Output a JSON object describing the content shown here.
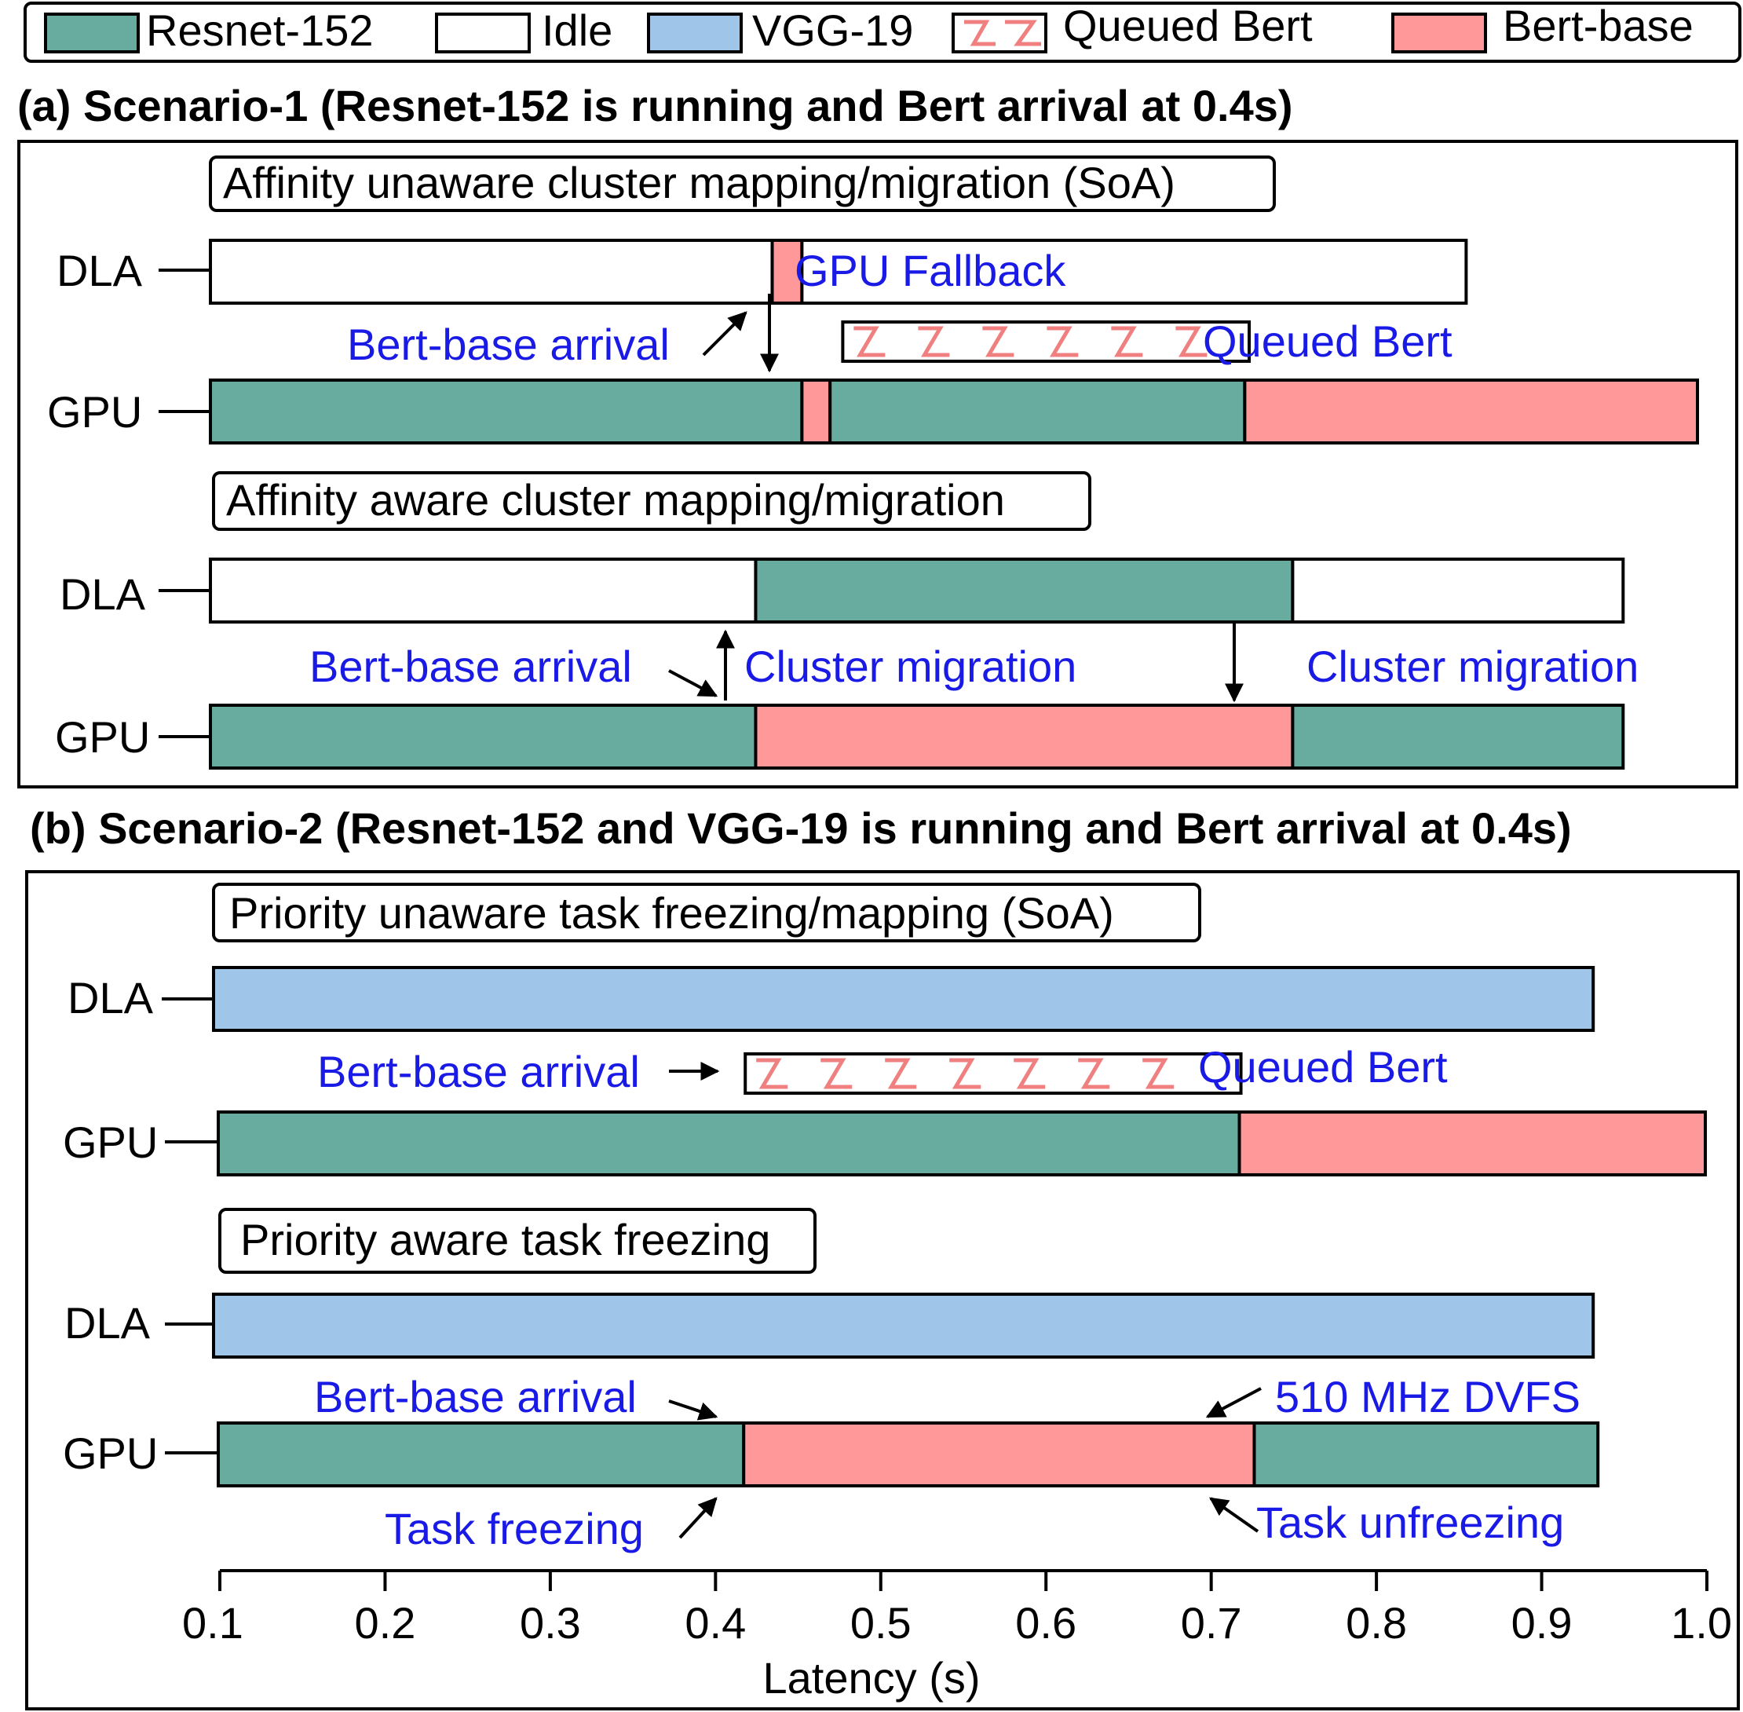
{
  "colors": {
    "resnet": "#68ab9f",
    "idle": "#ffffff",
    "vgg": "#9fc5e8",
    "queued_stroke": "#f08080",
    "bert": "#ff9999",
    "annotation": "#1a1ae6"
  },
  "legend": {
    "resnet": "Resnet-152",
    "idle": "Idle",
    "vgg": "VGG-19",
    "queued": "Queued Bert",
    "bert": "Bert-base"
  },
  "scenario_a": {
    "title": "(a) Scenario-1 (Resnet-152 is running and Bert arrival at 0.4s)",
    "panel1_title": "Affinity unaware cluster mapping/migration (SoA)",
    "panel2_title": "Affinity aware cluster mapping/migration",
    "dla_label": "DLA",
    "gpu_label": "GPU",
    "gpu_fallback": "GPU Fallback",
    "bert_arrival": "Bert-base arrival",
    "queued_bert": "Queued Bert",
    "cluster_migration_1": "Cluster migration",
    "cluster_migration_2": "Cluster migration"
  },
  "scenario_b": {
    "title": "(b) Scenario-2 (Resnet-152 and VGG-19 is running and Bert arrival at 0.4s)",
    "panel1_title": "Priority unaware task freezing/mapping (SoA)",
    "panel2_title": "Priority aware task freezing",
    "dla_label": "DLA",
    "gpu_label": "GPU",
    "bert_arrival_1": "Bert-base arrival",
    "queued_bert": "Queued Bert",
    "bert_arrival_2": "Bert-base arrival",
    "dvfs": "510  MHz DVFS",
    "task_freezing": "Task freezing",
    "task_unfreezing": "Task unfreezing"
  },
  "chart_data": {
    "type": "timeline",
    "xlabel": "Latency (s)",
    "xlim": [
      0.1,
      1.0
    ],
    "xticks": [
      "0.1",
      "0.2",
      "0.3",
      "0.4",
      "0.5",
      "0.6",
      "0.7",
      "0.8",
      "0.9",
      "1.0"
    ],
    "rows": [
      {
        "id": "a1-dla",
        "segments": [
          {
            "task": "idle",
            "start": 0.1,
            "end": 0.44
          },
          {
            "task": "bert",
            "start": 0.44,
            "end": 0.458
          },
          {
            "task": "idle",
            "start": 0.458,
            "end": 0.86
          }
        ]
      },
      {
        "id": "a1-queued",
        "segments": [
          {
            "task": "queued",
            "start": 0.477,
            "end": 0.723
          }
        ]
      },
      {
        "id": "a1-gpu",
        "segments": [
          {
            "task": "resnet",
            "start": 0.1,
            "end": 0.458
          },
          {
            "task": "bert",
            "start": 0.458,
            "end": 0.475
          },
          {
            "task": "resnet",
            "start": 0.475,
            "end": 0.726
          },
          {
            "task": "bert",
            "start": 0.726,
            "end": 1.0
          }
        ]
      },
      {
        "id": "a2-dla",
        "segments": [
          {
            "task": "idle",
            "start": 0.1,
            "end": 0.43
          },
          {
            "task": "resnet",
            "start": 0.43,
            "end": 0.755
          },
          {
            "task": "idle",
            "start": 0.755,
            "end": 0.955
          }
        ]
      },
      {
        "id": "a2-gpu",
        "segments": [
          {
            "task": "resnet",
            "start": 0.1,
            "end": 0.43
          },
          {
            "task": "bert",
            "start": 0.43,
            "end": 0.755
          },
          {
            "task": "resnet",
            "start": 0.755,
            "end": 0.955
          }
        ]
      },
      {
        "id": "b1-dla",
        "segments": [
          {
            "task": "vgg",
            "start": 0.1,
            "end": 0.935
          }
        ]
      },
      {
        "id": "b1-queued",
        "segments": [
          {
            "task": "queued",
            "start": 0.418,
            "end": 0.718
          }
        ]
      },
      {
        "id": "b1-gpu",
        "segments": [
          {
            "task": "resnet",
            "start": 0.1,
            "end": 0.718
          },
          {
            "task": "bert",
            "start": 0.718,
            "end": 1.0
          }
        ]
      },
      {
        "id": "b2-dla",
        "segments": [
          {
            "task": "vgg",
            "start": 0.1,
            "end": 0.935
          }
        ]
      },
      {
        "id": "b2-gpu",
        "segments": [
          {
            "task": "resnet",
            "start": 0.1,
            "end": 0.418
          },
          {
            "task": "bert",
            "start": 0.418,
            "end": 0.727
          },
          {
            "task": "resnet",
            "start": 0.727,
            "end": 0.935
          }
        ]
      }
    ]
  }
}
